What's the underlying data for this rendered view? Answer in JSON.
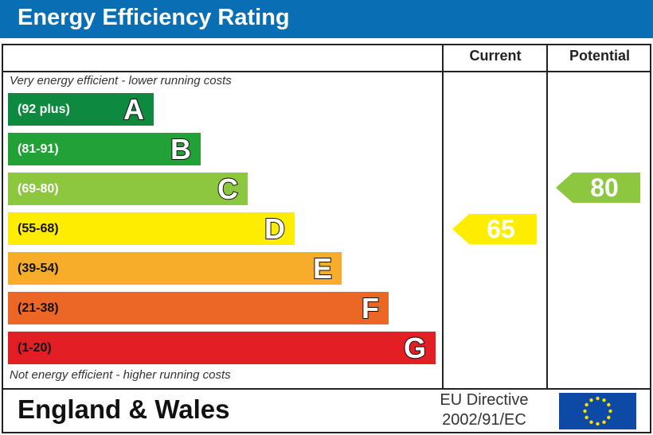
{
  "title": "Energy Efficiency Rating",
  "chart_data": {
    "type": "table",
    "title": "Energy Efficiency Rating",
    "columns": [
      "Current",
      "Potential"
    ],
    "top_note": "Very energy efficient - lower running costs",
    "bottom_note": "Not energy efficient - higher running costs",
    "bands": [
      {
        "letter": "A",
        "range": "(92 plus)",
        "color": "#0d8a3f"
      },
      {
        "letter": "B",
        "range": "(81-91)",
        "color": "#22a136"
      },
      {
        "letter": "C",
        "range": "(69-80)",
        "color": "#8dc63f"
      },
      {
        "letter": "D",
        "range": "(55-68)",
        "color": "#ffed00"
      },
      {
        "letter": "E",
        "range": "(39-54)",
        "color": "#f7ad2a"
      },
      {
        "letter": "F",
        "range": "(21-38)",
        "color": "#ec6726"
      },
      {
        "letter": "G",
        "range": "(1-20)",
        "color": "#e31e24"
      }
    ],
    "current": {
      "value": "65",
      "band": "D",
      "color": "#ffed00"
    },
    "potential": {
      "value": "80",
      "band": "C",
      "color": "#8dc63f"
    }
  },
  "footer": {
    "region": "England & Wales",
    "directive_line1": "EU Directive",
    "directive_line2": "2002/91/EC",
    "flag": "eu-flag-icon"
  }
}
